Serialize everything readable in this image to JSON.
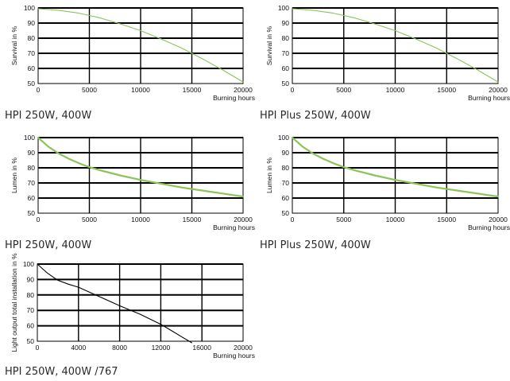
{
  "colors": {
    "grid": "#000000",
    "green_line": "#8cc45a",
    "black_line": "#000000",
    "text": "#111111"
  },
  "chart_data": [
    {
      "type": "line",
      "ylabel": "Survival in %",
      "xlabel": "Burning hours",
      "caption": "HPI 250W, 400W",
      "xlim": [
        0,
        20000
      ],
      "ylim": [
        50,
        100
      ],
      "xticks": [
        0,
        5000,
        10000,
        15000,
        20000
      ],
      "yticks": [
        50,
        60,
        70,
        80,
        90,
        100
      ],
      "grid": true,
      "series": [
        {
          "color": "#8cc45a",
          "stroke": 1.1,
          "x": [
            0,
            2000,
            4000,
            6000,
            8000,
            10000,
            12000,
            14000,
            16000,
            18000,
            20000
          ],
          "values": [
            99.5,
            98.5,
            96.5,
            93.5,
            89.5,
            85,
            79.5,
            73.5,
            66.5,
            59,
            51
          ]
        }
      ]
    },
    {
      "type": "line",
      "ylabel": "Survival in %",
      "xlabel": "Burning hours",
      "caption": "HPI Plus 250W, 400W",
      "xlim": [
        0,
        20000
      ],
      "ylim": [
        50,
        100
      ],
      "xticks": [
        0,
        5000,
        10000,
        15000,
        20000
      ],
      "yticks": [
        50,
        60,
        70,
        80,
        90,
        100
      ],
      "grid": true,
      "series": [
        {
          "color": "#8cc45a",
          "stroke": 1.1,
          "x": [
            0,
            2000,
            4000,
            6000,
            8000,
            10000,
            12000,
            14000,
            16000,
            18000,
            20000
          ],
          "values": [
            99.5,
            98.5,
            96.5,
            93.5,
            89.5,
            85,
            79.5,
            73.5,
            66.5,
            59,
            51
          ]
        }
      ]
    },
    {
      "type": "line",
      "ylabel": "Lumen in %",
      "xlabel": "Burning hours",
      "caption": "HPI 250W, 400W",
      "xlim": [
        0,
        20000
      ],
      "ylim": [
        50,
        100
      ],
      "xticks": [
        0,
        5000,
        10000,
        15000,
        20000
      ],
      "yticks": [
        50,
        60,
        70,
        80,
        90,
        100
      ],
      "grid": true,
      "series": [
        {
          "color": "#8cc45a",
          "stroke": 2.2,
          "x": [
            0,
            1000,
            2000,
            3000,
            4000,
            5000,
            6000,
            8000,
            10000,
            12000,
            14000,
            16000,
            18000,
            20000
          ],
          "values": [
            100,
            94,
            89.5,
            86,
            83,
            80.5,
            78.5,
            75,
            72,
            69.5,
            67,
            65,
            63,
            61
          ]
        }
      ]
    },
    {
      "type": "line",
      "ylabel": "Lumen in %",
      "xlabel": "Burning hours",
      "caption": "HPI Plus 250W, 400W",
      "xlim": [
        0,
        20000
      ],
      "ylim": [
        50,
        100
      ],
      "xticks": [
        0,
        5000,
        10000,
        15000,
        20000
      ],
      "yticks": [
        50,
        60,
        70,
        80,
        90,
        100
      ],
      "grid": true,
      "series": [
        {
          "color": "#8cc45a",
          "stroke": 2.2,
          "x": [
            0,
            1000,
            2000,
            3000,
            4000,
            5000,
            6000,
            8000,
            10000,
            12000,
            14000,
            16000,
            18000,
            20000
          ],
          "values": [
            100,
            94,
            89.5,
            86,
            83,
            80.5,
            78.5,
            75,
            72,
            69.5,
            67,
            65,
            63,
            61
          ]
        }
      ]
    },
    {
      "type": "line",
      "ylabel": "Light output total installation in %",
      "xlabel": "Burning hours",
      "caption": "HPI 250W, 400W /767",
      "xlim": [
        0,
        20000
      ],
      "ylim": [
        50,
        100
      ],
      "xticks": [
        0,
        4000,
        8000,
        12000,
        16000,
        20000
      ],
      "yticks": [
        50,
        60,
        70,
        80,
        90,
        100
      ],
      "grid": true,
      "series": [
        {
          "color": "#000000",
          "stroke": 1.1,
          "x": [
            0,
            1000,
            2000,
            3000,
            4000,
            6000,
            8000,
            10000,
            12000,
            13000,
            14000,
            15000
          ],
          "values": [
            100,
            94,
            89.5,
            87,
            85,
            79,
            73,
            67.5,
            61,
            57,
            53,
            49
          ]
        }
      ]
    }
  ]
}
